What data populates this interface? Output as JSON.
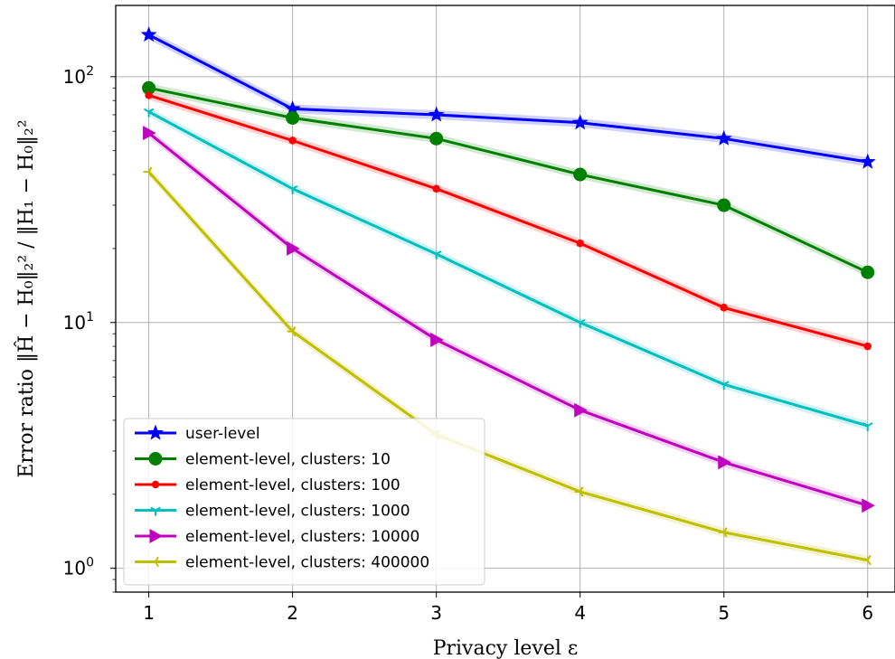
{
  "chart_data": {
    "type": "line",
    "xlabel": "Privacy level ε",
    "ylabel": "Error ratio ‖Ĥ − H₀‖₂² / ‖H₁ − H₀‖₂²",
    "x": [
      1,
      2,
      3,
      4,
      5,
      6
    ],
    "x_ticks": [
      "1",
      "2",
      "3",
      "4",
      "5",
      "6"
    ],
    "xlim": [
      0.77,
      6.19
    ],
    "y_scale": "log",
    "ylim": [
      0.8,
      195
    ],
    "y_ticks": [
      {
        "value": 1,
        "base": "10",
        "exp": "0"
      },
      {
        "value": 10,
        "base": "10",
        "exp": "1"
      },
      {
        "value": 100,
        "base": "10",
        "exp": "2"
      }
    ],
    "grid": true,
    "legend_position": "lower-left",
    "series": [
      {
        "name": "user-level",
        "color": "#0000ff",
        "marker": "star",
        "values": [
          148,
          74,
          70,
          65,
          56,
          45
        ]
      },
      {
        "name": "element-level, clusters: 10",
        "color": "#008000",
        "marker": "circle",
        "values": [
          90,
          68,
          56,
          40,
          30,
          16
        ]
      },
      {
        "name": "element-level, clusters: 100",
        "color": "#ff0000",
        "marker": "dot",
        "values": [
          84,
          55,
          35,
          21,
          11.5,
          8
        ]
      },
      {
        "name": "element-level, clusters: 1000",
        "color": "#00bfbf",
        "marker": "tri-down",
        "values": [
          72,
          35,
          19,
          10,
          5.6,
          3.8
        ]
      },
      {
        "name": "element-level, clusters: 10000",
        "color": "#bf00bf",
        "marker": "triangle-right",
        "values": [
          59,
          20,
          8.5,
          4.4,
          2.7,
          1.8
        ]
      },
      {
        "name": "element-level, clusters: 400000",
        "color": "#bfbf00",
        "marker": "tri-left",
        "values": [
          41,
          9.2,
          3.5,
          2.05,
          1.4,
          1.08
        ]
      }
    ]
  }
}
